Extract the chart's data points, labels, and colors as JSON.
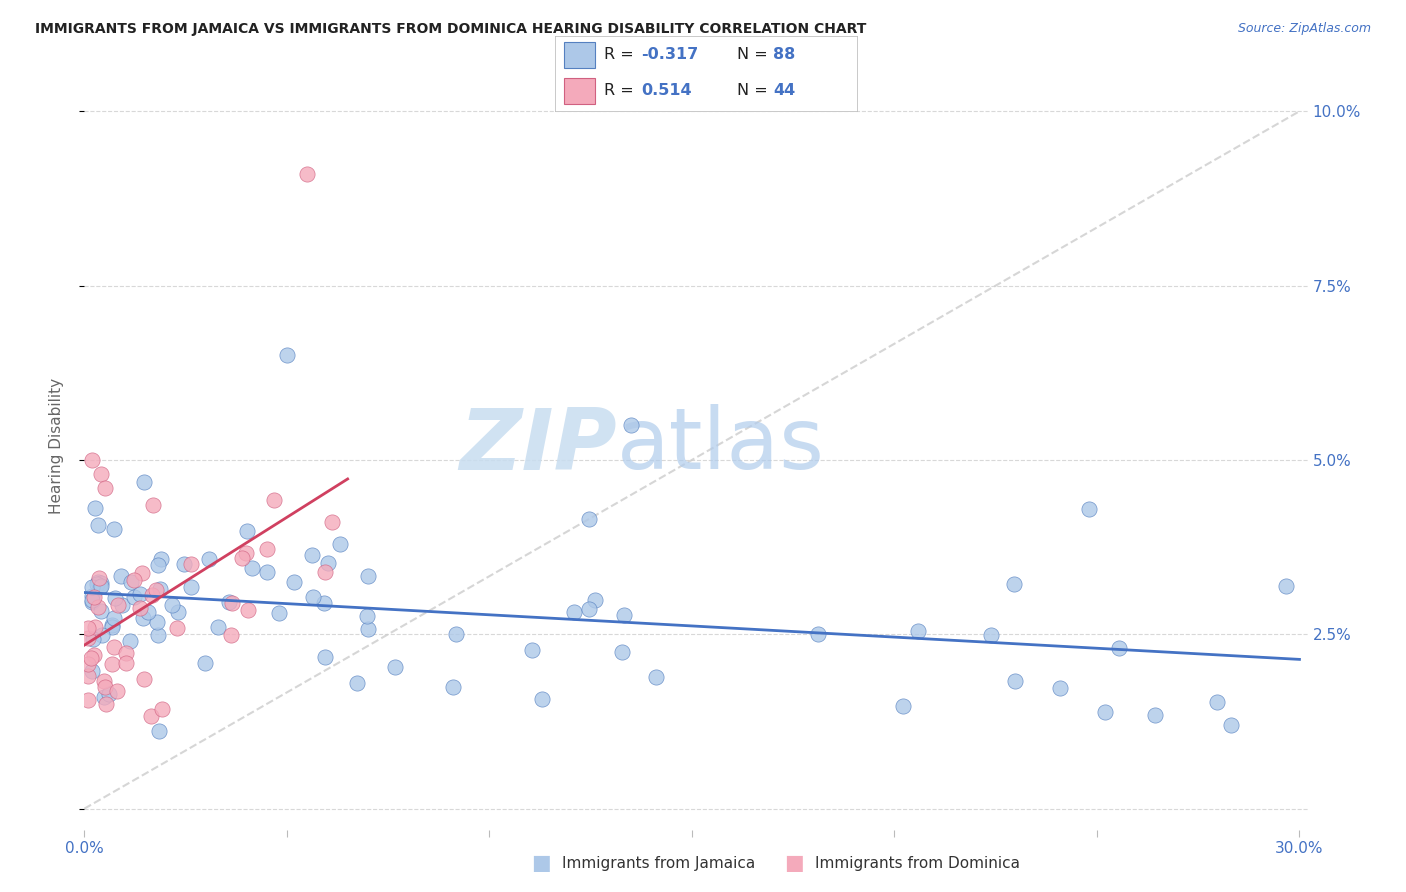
{
  "title": "IMMIGRANTS FROM JAMAICA VS IMMIGRANTS FROM DOMINICA HEARING DISABILITY CORRELATION CHART",
  "source": "Source: ZipAtlas.com",
  "ylabel": "Hearing Disability",
  "legend1_label": "Immigrants from Jamaica",
  "legend2_label": "Immigrants from Dominica",
  "r_jamaica": -0.317,
  "n_jamaica": 88,
  "r_dominica": 0.514,
  "n_dominica": 44,
  "color_jamaica": "#adc8e8",
  "color_dominica": "#f4aabb",
  "edge_jamaica": "#5580c0",
  "edge_dominica": "#d06080",
  "trendline_jamaica": "#4472c4",
  "trendline_dominica": "#d04060",
  "trendline_diagonal_color": "#cccccc",
  "axis_label_color": "#4472c4",
  "title_color": "#222222",
  "source_color": "#4472c4",
  "grid_color": "#d8d8d8",
  "xlim_min": 0.0,
  "xlim_max": 0.302,
  "ylim_min": -0.003,
  "ylim_max": 0.107,
  "xtick_positions": [
    0.0,
    0.05,
    0.1,
    0.15,
    0.2,
    0.25,
    0.3
  ],
  "ytick_positions": [
    0.0,
    0.025,
    0.05,
    0.075,
    0.1
  ],
  "ytick_labels_right": [
    "",
    "2.5%",
    "5.0%",
    "7.5%",
    "10.0%"
  ],
  "seed_jamaica": 42,
  "seed_dominica": 99
}
